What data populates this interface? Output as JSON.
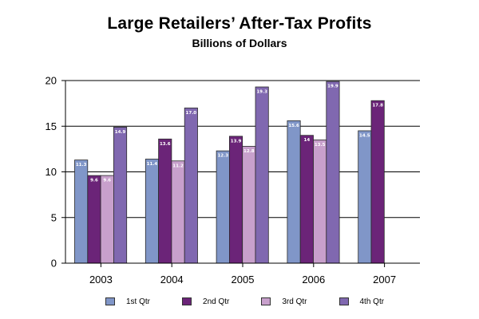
{
  "chart_data": {
    "type": "bar",
    "title": "Large Retailers’ After-Tax Profits",
    "subtitle": "Billions of Dollars",
    "categories": [
      "2003",
      "2004",
      "2005",
      "2006",
      "2007"
    ],
    "series": [
      {
        "name": "1st Qtr",
        "color": "#8096c8",
        "values": [
          11.3,
          11.4,
          12.3,
          15.6,
          14.5
        ],
        "labels": [
          "11.3",
          "11.4",
          "12.3",
          "15.6",
          "14.5"
        ]
      },
      {
        "name": "2nd Qtr",
        "color": "#6b2478",
        "values": [
          9.6,
          13.6,
          13.9,
          14.0,
          17.8
        ],
        "labels": [
          "9.6",
          "13.6",
          "13.9",
          "14",
          "17.8"
        ]
      },
      {
        "name": "3rd Qtr",
        "color": "#c8a0cc",
        "values": [
          9.6,
          11.2,
          12.8,
          13.5,
          null
        ],
        "labels": [
          "9.6",
          "11.2",
          "12.8",
          "13.5",
          null
        ]
      },
      {
        "name": "4th Qtr",
        "color": "#8068b0",
        "values": [
          14.9,
          17.0,
          19.3,
          19.9,
          null
        ],
        "labels": [
          "14.9",
          "17.0",
          "19.3",
          "19.9",
          null
        ]
      }
    ],
    "ylim": [
      0,
      20
    ],
    "yticks": [
      "0",
      "5",
      "10",
      "15",
      "20"
    ],
    "ytick_values": [
      0,
      5,
      10,
      15,
      20
    ],
    "grid": true,
    "legend": "bottom"
  }
}
